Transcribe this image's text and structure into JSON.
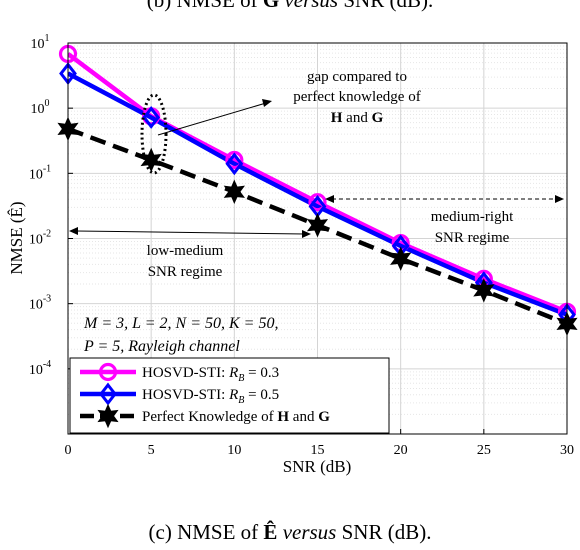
{
  "captions": {
    "top": {
      "prefix": "(b) NMSE of ",
      "bold": "G",
      "italic": " versus",
      "suffix": " SNR (dB)."
    },
    "bottom": {
      "prefix": "(c) NMSE of ",
      "bold": "Ê",
      "italic": " versus",
      "suffix": " SNR (dB)."
    }
  },
  "chart_data": {
    "type": "line",
    "xlabel": "SNR (dB)",
    "ylabel": "NMSE (Ê)",
    "x": [
      0,
      5,
      10,
      15,
      20,
      25,
      30
    ],
    "xlim": [
      0,
      30
    ],
    "ylim": [
      1e-05,
      10
    ],
    "yscale": "log",
    "grid": true,
    "legend_position": "bottom-left",
    "x_ticks": [
      "0",
      "5",
      "10",
      "15",
      "20",
      "25",
      "30"
    ],
    "y_ticks": [
      {
        "value": 10,
        "base": "10",
        "exp": "1"
      },
      {
        "value": 1,
        "base": "10",
        "exp": "0"
      },
      {
        "value": 0.1,
        "base": "10",
        "exp": "-1"
      },
      {
        "value": 0.01,
        "base": "10",
        "exp": "-2"
      },
      {
        "value": 0.001,
        "base": "10",
        "exp": "-3"
      },
      {
        "value": 0.0001,
        "base": "10",
        "exp": "-4"
      }
    ],
    "series": [
      {
        "name": "HOSVD-STI: R_B = 0.3",
        "legend_prefix": "HOSVD-STI: ",
        "legend_var": "R",
        "legend_sub": "B",
        "legend_suffix": " = 0.3",
        "color": "#ff00ff",
        "marker": "circle",
        "values": [
          6.8,
          0.75,
          0.16,
          0.036,
          0.0085,
          0.0024,
          0.00075
        ]
      },
      {
        "name": "HOSVD-STI: R_B = 0.5",
        "legend_prefix": "HOSVD-STI: ",
        "legend_var": "R",
        "legend_sub": "B",
        "legend_suffix": " = 0.5",
        "color": "#0000ff",
        "marker": "diamond",
        "values": [
          3.4,
          0.72,
          0.14,
          0.031,
          0.0077,
          0.0021,
          0.00068
        ]
      },
      {
        "name": "Perfect Knowledge of H and G",
        "legend_prefix": "Perfect Knowledge of ",
        "legend_bold1": "H",
        "legend_mid": " and ",
        "legend_bold2": "G",
        "color": "#000000",
        "marker": "hexagram",
        "dashed": true,
        "values": [
          0.48,
          0.16,
          0.052,
          0.016,
          0.0049,
          0.0016,
          0.00049
        ]
      }
    ],
    "annotations": {
      "gap_line1": "gap compared to",
      "gap_line2": "perfect knowledge of",
      "gap_bold1": "H",
      "gap_and": " and ",
      "gap_bold2": "G",
      "low_line1": "low-medium",
      "low_line2": "SNR regime",
      "med_line1": "medium-right",
      "med_line2": "SNR regime",
      "params_line1": "M = 3, L = 2, N = 50, K = 50,",
      "params_line2": "P = 5, Rayleigh channel"
    }
  }
}
